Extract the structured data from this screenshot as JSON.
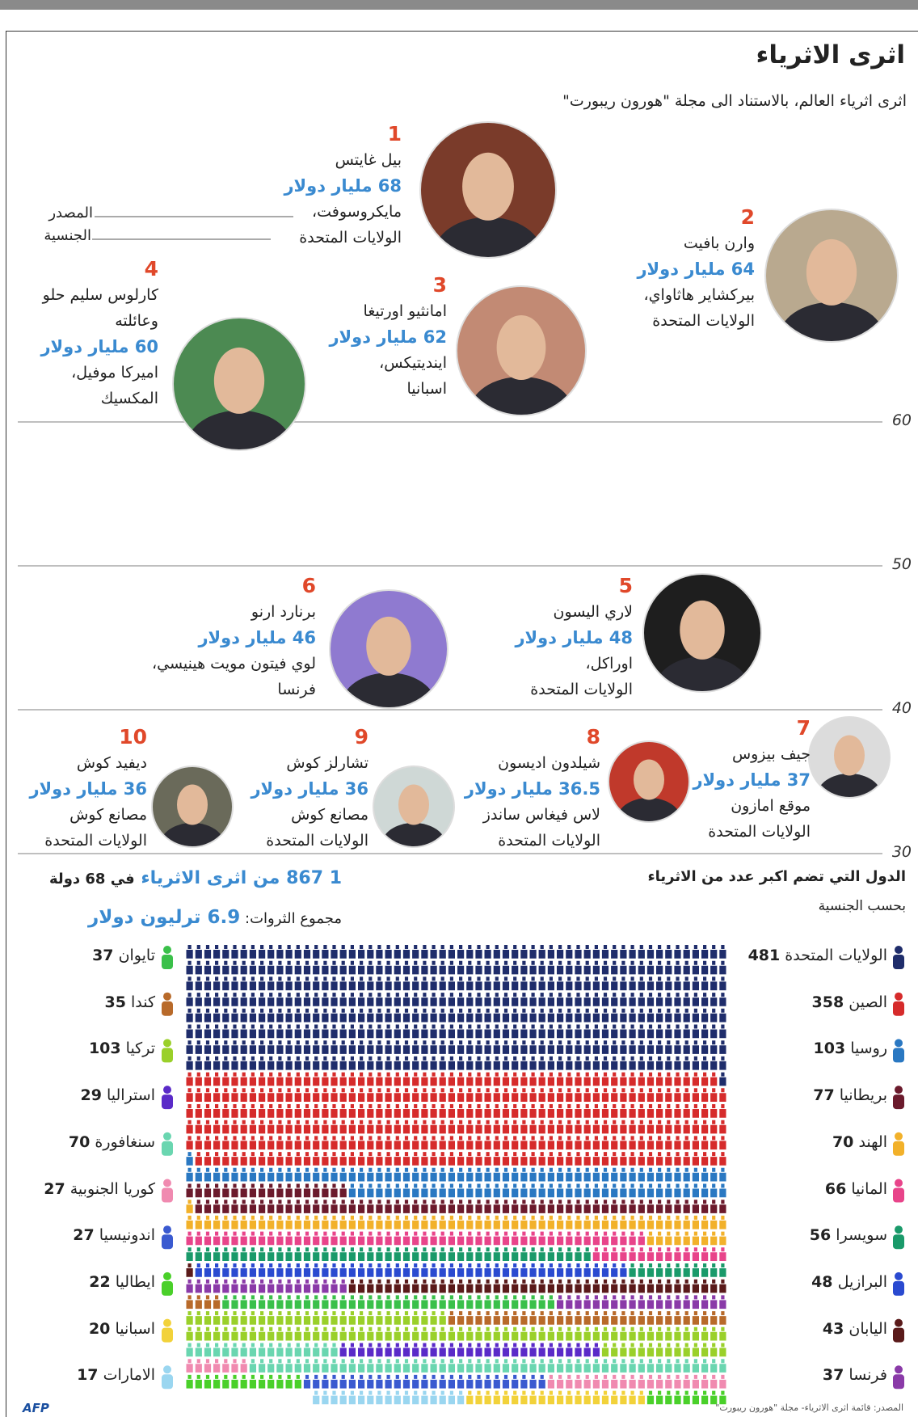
{
  "header": {
    "title": "اثرى الاثرياء",
    "subtitle": "اثرى اثرياء العالم، بالاستناد الى مجلة \"هورون ريبورت\""
  },
  "legend": {
    "source": "المصدر",
    "nationality": "الجنسية"
  },
  "scale": [
    60,
    50,
    40,
    30
  ],
  "people": [
    {
      "rank": 1,
      "name": "بيل غايتس",
      "worth": "68 مليار دولار",
      "company": "مايكروسوفت،",
      "country": "الولايات المتحدة"
    },
    {
      "rank": 2,
      "name": "وارن بافيت",
      "worth": "64 مليار دولار",
      "company": "بيركشاير هاثاواي،",
      "country": "الولايات المتحدة"
    },
    {
      "rank": 3,
      "name": "امانثيو اورتيغا",
      "worth": "62 مليار دولار",
      "company": "اينديتيكس،",
      "country": "اسبانيا"
    },
    {
      "rank": 4,
      "name": "كارلوس سليم حلو وعائلته",
      "worth": "60 مليار دولار",
      "company": "اميركا موفيل،",
      "country": "المكسيك"
    },
    {
      "rank": 5,
      "name": "لاري اليسون",
      "worth": "48 مليار دولار",
      "company": "اوراكل،",
      "country": "الولايات المتحدة"
    },
    {
      "rank": 6,
      "name": "برنارد ارنو",
      "worth": "46 مليار دولار",
      "company": "لوي فيتون مويت هينيسي،",
      "country": "فرنسا"
    },
    {
      "rank": 7,
      "name": "جيف بيزوس",
      "worth": "37 مليار دولار",
      "company": "موقع امازون",
      "country": "الولايات المتحدة"
    },
    {
      "rank": 8,
      "name": "شيلدون اديسون",
      "worth": "36.5 مليار دولار",
      "company": "لاس فيغاس ساندز",
      "country": "الولايات المتحدة"
    },
    {
      "rank": 9,
      "name": "تشارلز كوش",
      "worth": "36 مليار دولار",
      "company": "مصانع كوش",
      "country": "الولايات المتحدة"
    },
    {
      "rank": 10,
      "name": "ديفيد كوش",
      "worth": "36 مليار دولار",
      "company": "مصانع كوش",
      "country": "الولايات المتحدة"
    }
  ],
  "countries_panel": {
    "title": "الدول التي تضم اكبر عدد من الاثرياء",
    "subtitle": "بحسب الجنسية",
    "right": [
      {
        "name": "الولايات المتحدة",
        "count": 481,
        "color": "#1f2d6b"
      },
      {
        "name": "الصين",
        "count": 358,
        "color": "#d62b2b"
      },
      {
        "name": "روسيا",
        "count": 103,
        "color": "#2a78c2"
      },
      {
        "name": "بريطانيا",
        "count": 77,
        "color": "#6b1a2c"
      },
      {
        "name": "الهند",
        "count": 70,
        "color": "#f2b12a"
      },
      {
        "name": "المانيا",
        "count": 66,
        "color": "#e8448a"
      },
      {
        "name": "سويسرا",
        "count": 56,
        "color": "#1a9a6a"
      },
      {
        "name": "البرازيل",
        "count": 48,
        "color": "#2a4ad0"
      },
      {
        "name": "اليابان",
        "count": 43,
        "color": "#5a1a1a"
      },
      {
        "name": "فرنسا",
        "count": 37,
        "color": "#8a3aa8"
      }
    ],
    "left": [
      {
        "name": "تايوان",
        "count": 37,
        "color": "#3ac04a"
      },
      {
        "name": "كندا",
        "count": 35,
        "color": "#b86a2a"
      },
      {
        "name": "تركيا",
        "count": 103,
        "color": "#9ad02a"
      },
      {
        "name": "استراليا",
        "count": 29,
        "color": "#5a2ac8"
      },
      {
        "name": "سنغافورة",
        "count": 70,
        "color": "#6ad6b0"
      },
      {
        "name": "كوريا الجنوبية",
        "count": 27,
        "color": "#f08ab0"
      },
      {
        "name": "اندونيسيا",
        "count": 27,
        "color": "#3a5ad0"
      },
      {
        "name": "ايطاليا",
        "count": 22,
        "color": "#4ad02a"
      },
      {
        "name": "اسبانيا",
        "count": 20,
        "color": "#f2d23a"
      },
      {
        "name": "الامارات",
        "count": 17,
        "color": "#9ad6f0"
      }
    ]
  },
  "totals": {
    "people": "1 867 من اثرى الاثرياء",
    "countries": "في 68 دولة",
    "wealth_label": "مجموع الثروات:",
    "wealth": "6.9 ترليون دولار"
  },
  "footer": {
    "source": "المصدر: قائمة اثرى الاثرياء- مجلة \"هورون ريبورت\"",
    "logo": "AFP"
  }
}
